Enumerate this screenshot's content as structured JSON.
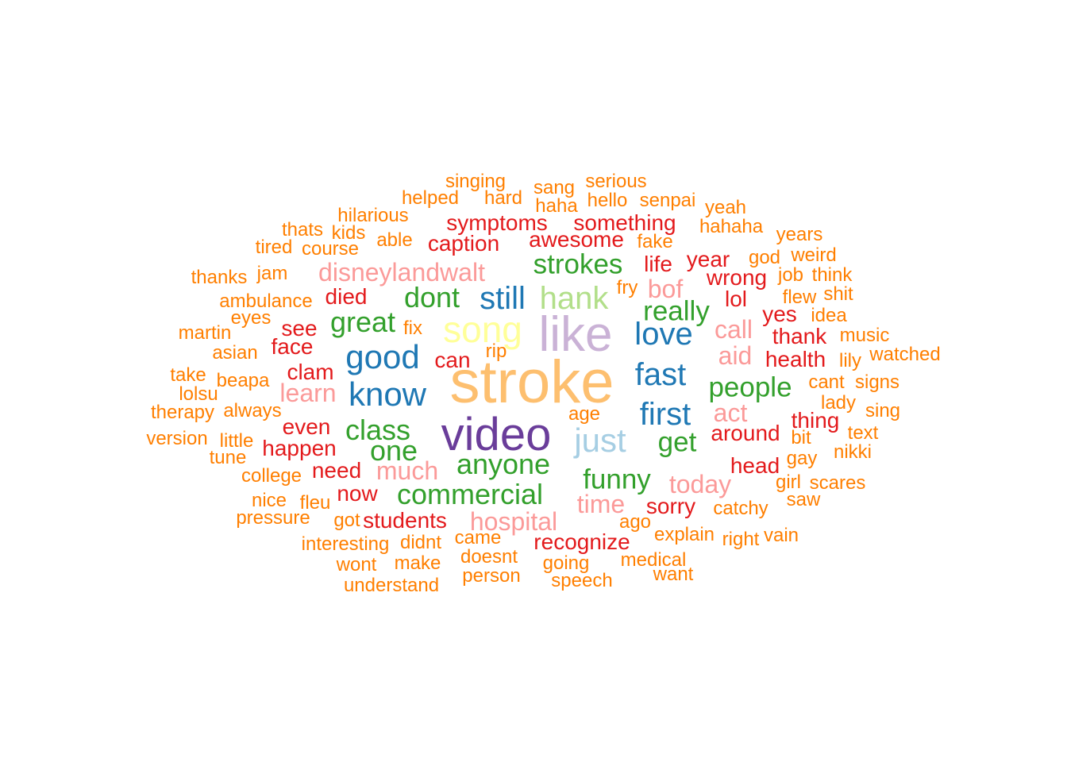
{
  "colors": {
    "purple": "#6a3d9a",
    "lavender": "#cab2d6",
    "peach": "#fdbf6f",
    "blue": "#1f78b4",
    "lightblue": "#a6cee3",
    "yellow": "#ffff99",
    "green": "#33a02c",
    "lightgreen": "#b2df8a",
    "red": "#e31a1c",
    "pink": "#fb9a99",
    "orange": "#ff7f00"
  },
  "words": [
    {
      "text": "stroke",
      "color": "peach",
      "size": 76
    },
    {
      "text": "like",
      "color": "lavender",
      "size": 62
    },
    {
      "text": "video",
      "color": "purple",
      "size": 58
    },
    {
      "text": "song",
      "color": "yellow",
      "size": 46
    },
    {
      "text": "know",
      "color": "blue",
      "size": 42
    },
    {
      "text": "good",
      "color": "blue",
      "size": 42
    },
    {
      "text": "just",
      "color": "lightblue",
      "size": 42
    },
    {
      "text": "first",
      "color": "blue",
      "size": 40
    },
    {
      "text": "fast",
      "color": "blue",
      "size": 40
    },
    {
      "text": "love",
      "color": "blue",
      "size": 40
    },
    {
      "text": "still",
      "color": "blue",
      "size": 40
    },
    {
      "text": "hank",
      "color": "lightgreen",
      "size": 40
    },
    {
      "text": "commercial",
      "color": "green",
      "size": 36
    },
    {
      "text": "anyone",
      "color": "green",
      "size": 36
    },
    {
      "text": "class",
      "color": "green",
      "size": 36
    },
    {
      "text": "one",
      "color": "green",
      "size": 36
    },
    {
      "text": "dont",
      "color": "green",
      "size": 36
    },
    {
      "text": "great",
      "color": "green",
      "size": 36
    },
    {
      "text": "strokes",
      "color": "green",
      "size": 35
    },
    {
      "text": "really",
      "color": "green",
      "size": 35
    },
    {
      "text": "people",
      "color": "green",
      "size": 35
    },
    {
      "text": "funny",
      "color": "green",
      "size": 35
    },
    {
      "text": "get",
      "color": "green",
      "size": 35
    },
    {
      "text": "disneylandwalt",
      "color": "pink",
      "size": 32
    },
    {
      "text": "hospital",
      "color": "pink",
      "size": 32
    },
    {
      "text": "much",
      "color": "pink",
      "size": 32
    },
    {
      "text": "learn",
      "color": "pink",
      "size": 32
    },
    {
      "text": "today",
      "color": "pink",
      "size": 32
    },
    {
      "text": "time",
      "color": "pink",
      "size": 32
    },
    {
      "text": "act",
      "color": "pink",
      "size": 32
    },
    {
      "text": "call",
      "color": "pink",
      "size": 32
    },
    {
      "text": "aid",
      "color": "pink",
      "size": 32
    },
    {
      "text": "bof",
      "color": "pink",
      "size": 32
    },
    {
      "text": "recognize",
      "color": "red",
      "size": 28
    },
    {
      "text": "symptoms",
      "color": "red",
      "size": 28
    },
    {
      "text": "something",
      "color": "red",
      "size": 28
    },
    {
      "text": "caption",
      "color": "red",
      "size": 28
    },
    {
      "text": "awesome",
      "color": "red",
      "size": 28
    },
    {
      "text": "students",
      "color": "red",
      "size": 28
    },
    {
      "text": "happen",
      "color": "red",
      "size": 28
    },
    {
      "text": "around",
      "color": "red",
      "size": 28
    },
    {
      "text": "health",
      "color": "red",
      "size": 28
    },
    {
      "text": "thing",
      "color": "red",
      "size": 28
    },
    {
      "text": "thank",
      "color": "red",
      "size": 28
    },
    {
      "text": "sorry",
      "color": "red",
      "size": 28
    },
    {
      "text": "wrong",
      "color": "red",
      "size": 28
    },
    {
      "text": "year",
      "color": "red",
      "size": 28
    },
    {
      "text": "head",
      "color": "red",
      "size": 28
    },
    {
      "text": "need",
      "color": "red",
      "size": 28
    },
    {
      "text": "even",
      "color": "red",
      "size": 28
    },
    {
      "text": "clam",
      "color": "red",
      "size": 28
    },
    {
      "text": "face",
      "color": "red",
      "size": 28
    },
    {
      "text": "died",
      "color": "red",
      "size": 28
    },
    {
      "text": "life",
      "color": "red",
      "size": 28
    },
    {
      "text": "see",
      "color": "red",
      "size": 28
    },
    {
      "text": "can",
      "color": "red",
      "size": 28
    },
    {
      "text": "now",
      "color": "red",
      "size": 28
    },
    {
      "text": "lol",
      "color": "red",
      "size": 28
    },
    {
      "text": "yes",
      "color": "red",
      "size": 28
    },
    {
      "text": "singing",
      "color": "orange",
      "size": 24
    },
    {
      "text": "serious",
      "color": "orange",
      "size": 24
    },
    {
      "text": "helped",
      "color": "orange",
      "size": 24
    },
    {
      "text": "hard",
      "color": "orange",
      "size": 24
    },
    {
      "text": "sang",
      "color": "orange",
      "size": 24
    },
    {
      "text": "haha",
      "color": "orange",
      "size": 24
    },
    {
      "text": "hello",
      "color": "orange",
      "size": 24
    },
    {
      "text": "senpai",
      "color": "orange",
      "size": 24
    },
    {
      "text": "yeah",
      "color": "orange",
      "size": 24
    },
    {
      "text": "hilarious",
      "color": "orange",
      "size": 24
    },
    {
      "text": "thats",
      "color": "orange",
      "size": 24
    },
    {
      "text": "kids",
      "color": "orange",
      "size": 24
    },
    {
      "text": "able",
      "color": "orange",
      "size": 24
    },
    {
      "text": "hahaha",
      "color": "orange",
      "size": 24
    },
    {
      "text": "years",
      "color": "orange",
      "size": 24
    },
    {
      "text": "tired",
      "color": "orange",
      "size": 24
    },
    {
      "text": "course",
      "color": "orange",
      "size": 24
    },
    {
      "text": "fake",
      "color": "orange",
      "size": 24
    },
    {
      "text": "god",
      "color": "orange",
      "size": 24
    },
    {
      "text": "weird",
      "color": "orange",
      "size": 24
    },
    {
      "text": "thanks",
      "color": "orange",
      "size": 24
    },
    {
      "text": "jam",
      "color": "orange",
      "size": 24
    },
    {
      "text": "job",
      "color": "orange",
      "size": 24
    },
    {
      "text": "think",
      "color": "orange",
      "size": 24
    },
    {
      "text": "fry",
      "color": "orange",
      "size": 24
    },
    {
      "text": "ambulance",
      "color": "orange",
      "size": 24
    },
    {
      "text": "flew",
      "color": "orange",
      "size": 24
    },
    {
      "text": "shit",
      "color": "orange",
      "size": 24
    },
    {
      "text": "eyes",
      "color": "orange",
      "size": 24
    },
    {
      "text": "idea",
      "color": "orange",
      "size": 24
    },
    {
      "text": "martin",
      "color": "orange",
      "size": 24
    },
    {
      "text": "fix",
      "color": "orange",
      "size": 24
    },
    {
      "text": "music",
      "color": "orange",
      "size": 24
    },
    {
      "text": "asian",
      "color": "orange",
      "size": 24
    },
    {
      "text": "rip",
      "color": "orange",
      "size": 24
    },
    {
      "text": "watched",
      "color": "orange",
      "size": 24
    },
    {
      "text": "lily",
      "color": "orange",
      "size": 24
    },
    {
      "text": "take",
      "color": "orange",
      "size": 24
    },
    {
      "text": "beapa",
      "color": "orange",
      "size": 24
    },
    {
      "text": "cant",
      "color": "orange",
      "size": 24
    },
    {
      "text": "signs",
      "color": "orange",
      "size": 24
    },
    {
      "text": "lolsu",
      "color": "orange",
      "size": 24
    },
    {
      "text": "lady",
      "color": "orange",
      "size": 24
    },
    {
      "text": "therapy",
      "color": "orange",
      "size": 24
    },
    {
      "text": "always",
      "color": "orange",
      "size": 24
    },
    {
      "text": "age",
      "color": "orange",
      "size": 24
    },
    {
      "text": "sing",
      "color": "orange",
      "size": 24
    },
    {
      "text": "version",
      "color": "orange",
      "size": 24
    },
    {
      "text": "little",
      "color": "orange",
      "size": 24
    },
    {
      "text": "bit",
      "color": "orange",
      "size": 24
    },
    {
      "text": "text",
      "color": "orange",
      "size": 24
    },
    {
      "text": "tune",
      "color": "orange",
      "size": 24
    },
    {
      "text": "nikki",
      "color": "orange",
      "size": 24
    },
    {
      "text": "gay",
      "color": "orange",
      "size": 24
    },
    {
      "text": "college",
      "color": "orange",
      "size": 24
    },
    {
      "text": "girl",
      "color": "orange",
      "size": 24
    },
    {
      "text": "scares",
      "color": "orange",
      "size": 24
    },
    {
      "text": "nice",
      "color": "orange",
      "size": 24
    },
    {
      "text": "fleu",
      "color": "orange",
      "size": 24
    },
    {
      "text": "saw",
      "color": "orange",
      "size": 24
    },
    {
      "text": "catchy",
      "color": "orange",
      "size": 24
    },
    {
      "text": "pressure",
      "color": "orange",
      "size": 24
    },
    {
      "text": "got",
      "color": "orange",
      "size": 24
    },
    {
      "text": "ago",
      "color": "orange",
      "size": 24
    },
    {
      "text": "explain",
      "color": "orange",
      "size": 24
    },
    {
      "text": "right",
      "color": "orange",
      "size": 24
    },
    {
      "text": "vain",
      "color": "orange",
      "size": 24
    },
    {
      "text": "interesting",
      "color": "orange",
      "size": 24
    },
    {
      "text": "didnt",
      "color": "orange",
      "size": 24
    },
    {
      "text": "came",
      "color": "orange",
      "size": 24
    },
    {
      "text": "doesnt",
      "color": "orange",
      "size": 24
    },
    {
      "text": "wont",
      "color": "orange",
      "size": 24
    },
    {
      "text": "make",
      "color": "orange",
      "size": 24
    },
    {
      "text": "going",
      "color": "orange",
      "size": 24
    },
    {
      "text": "medical",
      "color": "orange",
      "size": 24
    },
    {
      "text": "person",
      "color": "orange",
      "size": 24
    },
    {
      "text": "want",
      "color": "orange",
      "size": 24
    },
    {
      "text": "understand",
      "color": "orange",
      "size": 24
    },
    {
      "text": "speech",
      "color": "orange",
      "size": 24
    }
  ]
}
